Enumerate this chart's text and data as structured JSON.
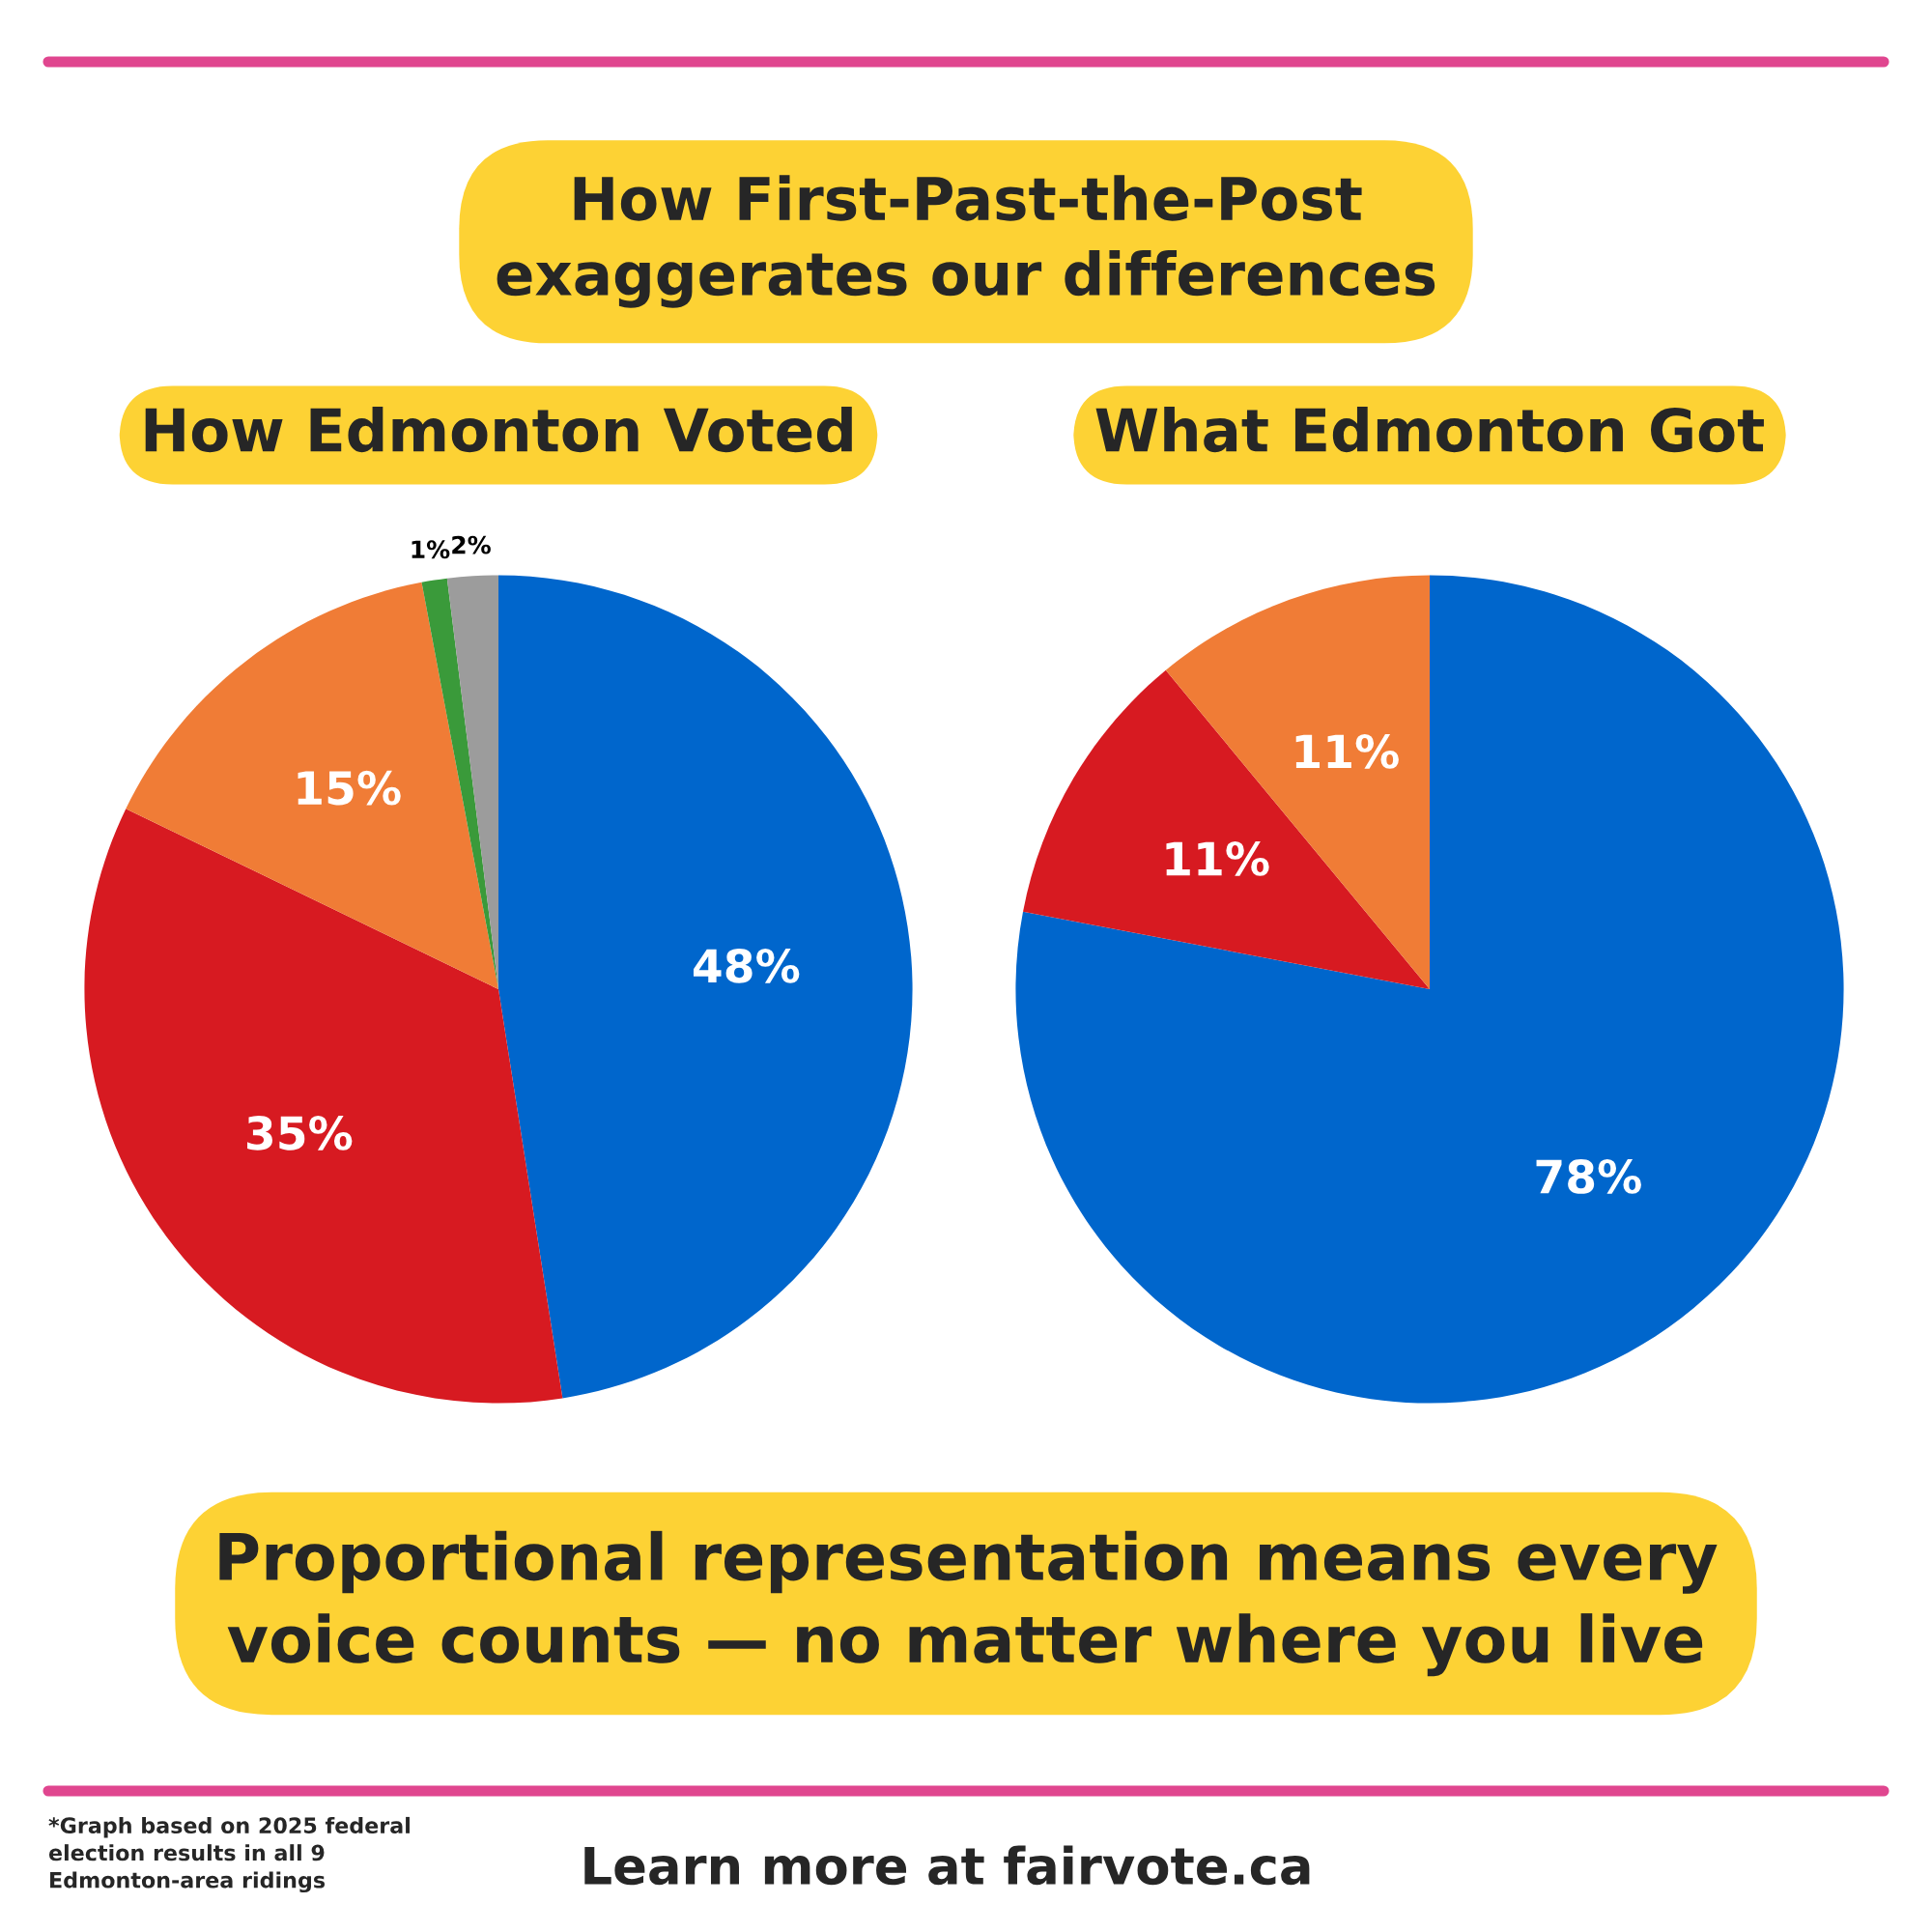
{
  "chart_data": [
    {
      "type": "pie",
      "title": "How Edmonton Voted",
      "categories": [
        null,
        null,
        null,
        null,
        null
      ],
      "values": [
        48,
        35,
        15,
        1,
        2
      ],
      "colors": [
        "#0066cc",
        "#d71a21",
        "#f07c36",
        "#3a9a3a",
        "#9c9c9c"
      ],
      "value_labels": [
        "48%",
        "35%",
        "15%",
        "1%",
        "2%"
      ],
      "annotations": [
        "How First-Past-the-Post exaggerates our differences",
        "Proportional representation means every voice counts — no matter where you live",
        "*Graph based on 2025 federal election results in all 9 Edmonton-area ridings",
        "Learn more at fairvote.ca"
      ]
    },
    {
      "type": "pie",
      "title": "What Edmonton Got",
      "categories": [
        null,
        null,
        null
      ],
      "values": [
        78,
        11,
        11
      ],
      "colors": [
        "#0066cc",
        "#d71a21",
        "#f07c36"
      ],
      "value_labels": [
        "78%",
        "11%",
        "11%"
      ]
    }
  ]
}
